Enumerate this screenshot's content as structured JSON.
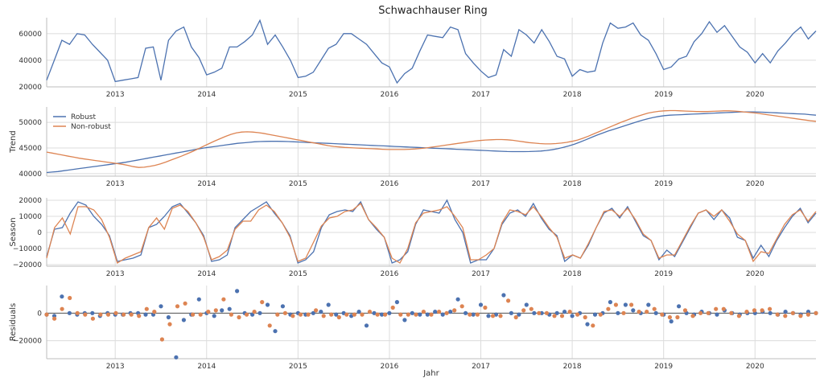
{
  "chart_data": {
    "title": "Schwachhauser Ring",
    "xlabel": "Jahr",
    "year_labels": [
      "2013",
      "2014",
      "2015",
      "2016",
      "2017",
      "2018",
      "2019",
      "2020"
    ],
    "x_start": "2012-04",
    "x_end": "2020-09",
    "colors": {
      "robust": "#4c72b0",
      "nonrobust": "#dd8452"
    },
    "panels": [
      {
        "name": "observed",
        "type": "line",
        "ylabel": "",
        "ylim": [
          20000,
          72000
        ],
        "yticks": [
          20000,
          40000,
          60000
        ],
        "series": [
          {
            "role": "robust",
            "values": [
              25000,
              40000,
              55000,
              52000,
              60000,
              59000,
              52000,
              46000,
              40000,
              24000,
              25000,
              26000,
              27000,
              49000,
              50000,
              25000,
              55000,
              62000,
              65000,
              50000,
              42000,
              29000,
              31000,
              34000,
              50000,
              50000,
              54000,
              59000,
              70000,
              52000,
              59000,
              50000,
              40000,
              27000,
              28000,
              31000,
              40000,
              49000,
              52000,
              60000,
              60000,
              56000,
              52000,
              45000,
              38000,
              35000,
              23000,
              30000,
              34000,
              47000,
              59000,
              58000,
              57000,
              65000,
              63000,
              45000,
              38000,
              32000,
              27000,
              29000,
              48000,
              43000,
              63000,
              59000,
              53000,
              63000,
              54000,
              43000,
              41000,
              28000,
              33000,
              31000,
              32000,
              53000,
              68000,
              64000,
              65000,
              68000,
              59000,
              55000,
              45000,
              33000,
              35000,
              41000,
              43000,
              54000,
              60000,
              69000,
              61000,
              66000,
              58000,
              50000,
              46000,
              38000,
              45000,
              38000,
              47000,
              53000,
              60000,
              65000,
              56000,
              62000
            ]
          }
        ]
      },
      {
        "name": "trend",
        "type": "line",
        "ylabel": "Trend",
        "ylim": [
          39500,
          53000
        ],
        "yticks": [
          40000,
          45000,
          50000
        ],
        "legend": [
          "Robust",
          "Non-robust"
        ],
        "series": [
          {
            "role": "robust",
            "values": [
              40200,
              40300,
              40400,
              40550,
              40700,
              40850,
              41000,
              41150,
              41300,
              41450,
              41600,
              41750,
              41900,
              42050,
              42200,
              42400,
              42600,
              42800,
              43000,
              43200,
              43400,
              43600,
              43800,
              44000,
              44200,
              44400,
              44600,
              44800,
              45000,
              45150,
              45300,
              45450,
              45600,
              45750,
              45900,
              46000,
              46100,
              46200,
              46250,
              46280,
              46300,
              46300,
              46280,
              46250,
              46200,
              46150,
              46100,
              46050,
              46000,
              45950,
              45900,
              45850,
              45800,
              45750,
              45700,
              45650,
              45600,
              45550,
              45500,
              45450,
              45400,
              45350,
              45300,
              45250,
              45200,
              45150,
              45100,
              45050,
              45000,
              44950,
              44900,
              44850,
              44800,
              44750,
              44700,
              44650,
              44600,
              44550,
              44500,
              44450,
              44400,
              44350,
              44300,
              44280,
              44280,
              44280,
              44300,
              44350,
              44400,
              44500,
              44650,
              44850,
              45100,
              45400,
              45750,
              46150,
              46600,
              47050,
              47500,
              47900,
              48300,
              48650,
              49000,
              49350,
              49700,
              50050,
              50400,
              50700,
              50950,
              51150,
              51300,
              51400,
              51450,
              51500,
              51550,
              51600,
              51650,
              51700,
              51750,
              51800,
              51850,
              51900,
              51950,
              52000,
              52050,
              52050,
              52050,
              52000,
              51950,
              51900,
              51850,
              51800,
              51750,
              51700,
              51650,
              51600,
              51500,
              51400
            ]
          },
          {
            "role": "nonrobust",
            "values": [
              44200,
              44000,
              43800,
              43600,
              43400,
              43200,
              43000,
              42850,
              42700,
              42550,
              42400,
              42250,
              42100,
              41950,
              41800,
              41600,
              41350,
              41200,
              41250,
              41400,
              41600,
              41900,
              42250,
              42650,
              43050,
              43450,
              43900,
              44350,
              44850,
              45350,
              45850,
              46350,
              46800,
              47250,
              47650,
              47950,
              48100,
              48150,
              48100,
              48000,
              47850,
              47650,
              47450,
              47250,
              47050,
              46850,
              46650,
              46450,
              46250,
              46050,
              45850,
              45650,
              45450,
              45300,
              45200,
              45100,
              45050,
              45000,
              44950,
              44900,
              44850,
              44800,
              44750,
              44700,
              44700,
              44700,
              44700,
              44750,
              44800,
              44900,
              45000,
              45150,
              45300,
              45450,
              45600,
              45750,
              45900,
              46050,
              46200,
              46350,
              46450,
              46550,
              46600,
              46650,
              46650,
              46600,
              46500,
              46350,
              46200,
              46050,
              45950,
              45850,
              45800,
              45800,
              45850,
              45950,
              46100,
              46300,
              46550,
              46900,
              47300,
              47750,
              48200,
              48650,
              49100,
              49550,
              50000,
              50400,
              50800,
              51150,
              51500,
              51800,
              52000,
              52150,
              52250,
              52300,
              52300,
              52250,
              52200,
              52150,
              52100,
              52100,
              52100,
              52150,
              52200,
              52250,
              52250,
              52200,
              52100,
              52000,
              51900,
              51800,
              51650,
              51500,
              51350,
              51200,
              51050,
              50900,
              50750,
              50600,
              50450,
              50300,
              50200
            ]
          }
        ]
      },
      {
        "name": "season",
        "type": "line",
        "ylabel": "Season",
        "ylim": [
          -21000,
          21500
        ],
        "yticks": [
          -20000,
          -10000,
          0,
          10000,
          20000
        ],
        "series": [
          {
            "role": "robust",
            "values": [
              -15000,
              2000,
              3000,
              12000,
              19000,
              17000,
              10000,
              5000,
              -2000,
              -18000,
              -17000,
              -16000,
              -14000,
              3000,
              5000,
              10000,
              16000,
              18000,
              12000,
              6000,
              -2000,
              -18000,
              -17000,
              -14000,
              3000,
              8000,
              13000,
              16000,
              19000,
              12000,
              6000,
              -2000,
              -19000,
              -17000,
              -12000,
              3000,
              11000,
              13000,
              14000,
              13000,
              19000,
              8000,
              2000,
              -3000,
              -19000,
              -17000,
              -12000,
              5000,
              14000,
              13000,
              12000,
              20000,
              8000,
              0,
              -19000,
              -17000,
              -17000,
              -10000,
              5000,
              12000,
              14000,
              10000,
              18000,
              9000,
              2000,
              -2000,
              -18000,
              -14000,
              -16000,
              -8000,
              3000,
              12000,
              15000,
              9000,
              16000,
              7000,
              -2000,
              -5000,
              -17000,
              -11000,
              -15000,
              -6000,
              3000,
              12000,
              14000,
              8000,
              14000,
              9000,
              -3000,
              -5000,
              -16000,
              -8000,
              -15000,
              -5000,
              3000,
              10000,
              15000,
              6000,
              12000
            ]
          },
          {
            "role": "nonrobust",
            "values": [
              -16000,
              3000,
              9000,
              -1000,
              16000,
              16000,
              14000,
              8000,
              -3000,
              -19000,
              -16000,
              -14000,
              -12000,
              3000,
              9000,
              2000,
              15000,
              17000,
              13000,
              6000,
              -3000,
              -17000,
              -15000,
              -11000,
              2000,
              7000,
              7000,
              14000,
              17000,
              13000,
              6000,
              -3000,
              -18000,
              -16000,
              -6000,
              4000,
              9000,
              10000,
              13000,
              14000,
              18000,
              8000,
              3000,
              -3000,
              -16000,
              -19000,
              -10000,
              6000,
              12000,
              13000,
              14000,
              16000,
              10000,
              3000,
              -17000,
              -17000,
              -14000,
              -10000,
              6000,
              14000,
              13000,
              11000,
              16000,
              10000,
              3000,
              -3000,
              -16000,
              -14000,
              -16000,
              -7000,
              3000,
              13000,
              14000,
              10000,
              15000,
              8000,
              -1000,
              -5000,
              -16000,
              -14000,
              -14000,
              -5000,
              4000,
              12000,
              14000,
              10000,
              14000,
              7000,
              -1000,
              -5000,
              -18000,
              -12000,
              -13000,
              -4000,
              5000,
              11000,
              14000,
              7000,
              13000
            ]
          }
        ]
      },
      {
        "name": "residuals",
        "type": "scatter",
        "ylabel": "Residuals",
        "ylim": [
          -33000,
          20000
        ],
        "yticks": [
          -20000,
          0
        ],
        "series": [
          {
            "role": "robust",
            "values": [
              -1000,
              -2000,
              12000,
              0,
              -1000,
              0,
              0,
              -2000,
              0,
              -1000,
              -1000,
              0,
              0,
              -1000,
              -1000,
              5000,
              -3000,
              -32000,
              -5000,
              -1000,
              10000,
              0,
              -2000,
              2000,
              3000,
              16000,
              0,
              -1000,
              0,
              6000,
              -13000,
              5000,
              -1000,
              0,
              -1000,
              0,
              1000,
              6000,
              -1000,
              0,
              -2000,
              1000,
              -9000,
              0,
              -1000,
              0,
              8000,
              -5000,
              0,
              -1000,
              -1000,
              1000,
              -1000,
              1000,
              10000,
              0,
              -1000,
              6000,
              -2000,
              -1000,
              13000,
              0,
              -1000,
              6000,
              0,
              0,
              -1000,
              0,
              1000,
              -2000,
              0,
              -8000,
              -1000,
              0,
              8000,
              0,
              6000,
              2000,
              0,
              6000,
              0,
              -1000,
              -6000,
              5000,
              0,
              -1000,
              1000,
              0,
              -1000,
              2000,
              0,
              -1000,
              0,
              0,
              1000,
              0,
              -1000,
              1000,
              0,
              -1000,
              1000,
              0
            ]
          },
          {
            "role": "nonrobust",
            "values": [
              -1000,
              -4000,
              3000,
              11000,
              0,
              -1000,
              -4000,
              -1000,
              -1000,
              0,
              -1000,
              -1000,
              -2000,
              3000,
              1000,
              -19000,
              -8000,
              5000,
              7000,
              -1000,
              -1000,
              1000,
              2000,
              10000,
              -1000,
              -3000,
              -1000,
              1000,
              8000,
              -9000,
              -1000,
              0,
              -2000,
              -1000,
              -1000,
              2000,
              -2000,
              -1000,
              -3000,
              -1000,
              -1000,
              -1000,
              1000,
              -1000,
              -1000,
              4000,
              -1000,
              -1000,
              -1000,
              1000,
              -1000,
              1000,
              0,
              2000,
              5000,
              -1000,
              -1000,
              4000,
              -2000,
              -2000,
              9000,
              -3000,
              2000,
              3000,
              0,
              0,
              -2000,
              -2000,
              1000,
              -1000,
              -3000,
              -9000,
              -1000,
              3000,
              6000,
              0,
              6000,
              1000,
              1000,
              3000,
              -1000,
              -3000,
              -3000,
              2000,
              -2000,
              0,
              0,
              3000,
              3000,
              0,
              -2000,
              1000,
              2000,
              2000,
              3000,
              -1000,
              -2000,
              0,
              -2000,
              -1000,
              0
            ]
          }
        ]
      }
    ]
  }
}
